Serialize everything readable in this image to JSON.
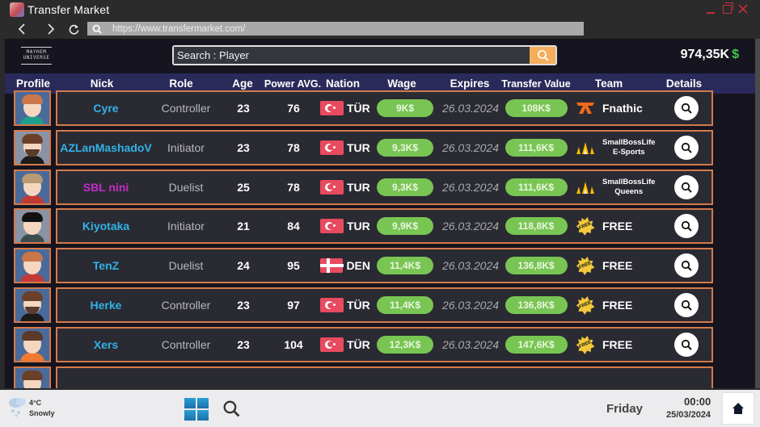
{
  "window": {
    "title": "Transfer Market",
    "controls": [
      "minimize",
      "maximize",
      "close"
    ]
  },
  "browser": {
    "back_icon": "chevron-left-icon",
    "forward_icon": "chevron-right-icon",
    "reload_icon": "reload-icon",
    "url": "https://www.transfermarket.com/"
  },
  "app": {
    "logo_text": "MAYHEM UNIVERSE",
    "search": {
      "placeholder": "Search : Player",
      "button_icon": "search-icon"
    },
    "balance": {
      "amount": "974,35K",
      "currency_symbol": "$"
    },
    "columns": [
      "Profile",
      "Nick",
      "Role",
      "Age",
      "Power AVG.",
      "Nation",
      "Wage",
      "Expires",
      "Transfer Value",
      "Team",
      "Details"
    ],
    "players": [
      {
        "nick": "Cyre",
        "nick_color": "blue",
        "role": "Controller",
        "age": "23",
        "power": "76",
        "nation": "TÜR",
        "flag": "turkey",
        "wage": "9K$",
        "expires": "26.03.2024",
        "value": "108K$",
        "team": "Fnathic",
        "team_logo": "fnatic-logo",
        "avatar": {
          "hair": "#c9774a",
          "body": "#1f9e8c",
          "bg": "blue",
          "beard": false
        }
      },
      {
        "nick": "AZLanMashadoV",
        "nick_color": "blue",
        "role": "Initiator",
        "age": "23",
        "power": "78",
        "nation": "TUR",
        "flag": "turkey",
        "wage": "9,3K$",
        "expires": "26.03.2024",
        "value": "111,6K$",
        "team_line1": "SmallBossLife",
        "team_line2": "E-Sports",
        "team_logo": "crown-logo",
        "avatar": {
          "hair": "#6a4028",
          "body": "#1b1b1b",
          "bg": "gray",
          "beard": true
        }
      },
      {
        "nick": "SBL nini",
        "nick_color": "pink",
        "role": "Duelist",
        "age": "25",
        "power": "78",
        "nation": "TUR",
        "flag": "turkey",
        "wage": "9,3K$",
        "expires": "26.03.2024",
        "value": "111,6K$",
        "team_line1": "SmallBossLife",
        "team_line2": "Queens",
        "team_logo": "crown-logo",
        "avatar": {
          "hair": "#b89a72",
          "body": "#c23a36",
          "bg": "blue",
          "beard": false
        }
      },
      {
        "nick": "Kiyotaka",
        "nick_color": "blue",
        "role": "Initiator",
        "age": "21",
        "power": "84",
        "nation": "TUR",
        "flag": "turkey",
        "wage": "9,9K$",
        "expires": "26.03.2024",
        "value": "118,8K$",
        "team": "FREE",
        "team_logo": "free-badge",
        "avatar": {
          "hair": "#111111",
          "body": "#3c4c4c",
          "bg": "gray",
          "beard": false
        }
      },
      {
        "nick": "TenZ",
        "nick_color": "blue",
        "role": "Duelist",
        "age": "24",
        "power": "95",
        "nation": "DEN",
        "flag": "denmark",
        "wage": "11,4K$",
        "expires": "26.03.2024",
        "value": "136,8K$",
        "team": "FREE",
        "team_logo": "free-badge",
        "avatar": {
          "hair": "#c9774a",
          "body": "#c23a36",
          "bg": "blue",
          "beard": false
        }
      },
      {
        "nick": "Herke",
        "nick_color": "blue",
        "role": "Controller",
        "age": "23",
        "power": "97",
        "nation": "TÜR",
        "flag": "turkey",
        "wage": "11,4K$",
        "expires": "26.03.2024",
        "value": "136,8K$",
        "team": "FREE",
        "team_logo": "free-badge",
        "avatar": {
          "hair": "#6a4028",
          "body": "#1b1b1b",
          "bg": "blue",
          "beard": true
        }
      },
      {
        "nick": "Xers",
        "nick_color": "blue",
        "role": "Controller",
        "age": "23",
        "power": "104",
        "nation": "TÜR",
        "flag": "turkey",
        "wage": "12,3K$",
        "expires": "26.03.2024",
        "value": "147,6K$",
        "team": "FREE",
        "team_logo": "free-badge",
        "avatar": {
          "hair": "#5a3a28",
          "body": "#f07a30",
          "bg": "blue",
          "beard": false
        }
      }
    ],
    "colors": {
      "accent_orange": "#d47a4a",
      "pill_green": "#78c553",
      "nick_blue": "#31b3e6",
      "nick_pink": "#c22ec6",
      "header_bg": "#2a2a5a",
      "balance_dollar": "#3ccf4e"
    }
  },
  "taskbar": {
    "weather_temp": "4°C",
    "weather_desc": "Snowly",
    "day": "Friday",
    "time": "00:00",
    "date": "25/03/2024",
    "home_icon": "home-icon"
  }
}
